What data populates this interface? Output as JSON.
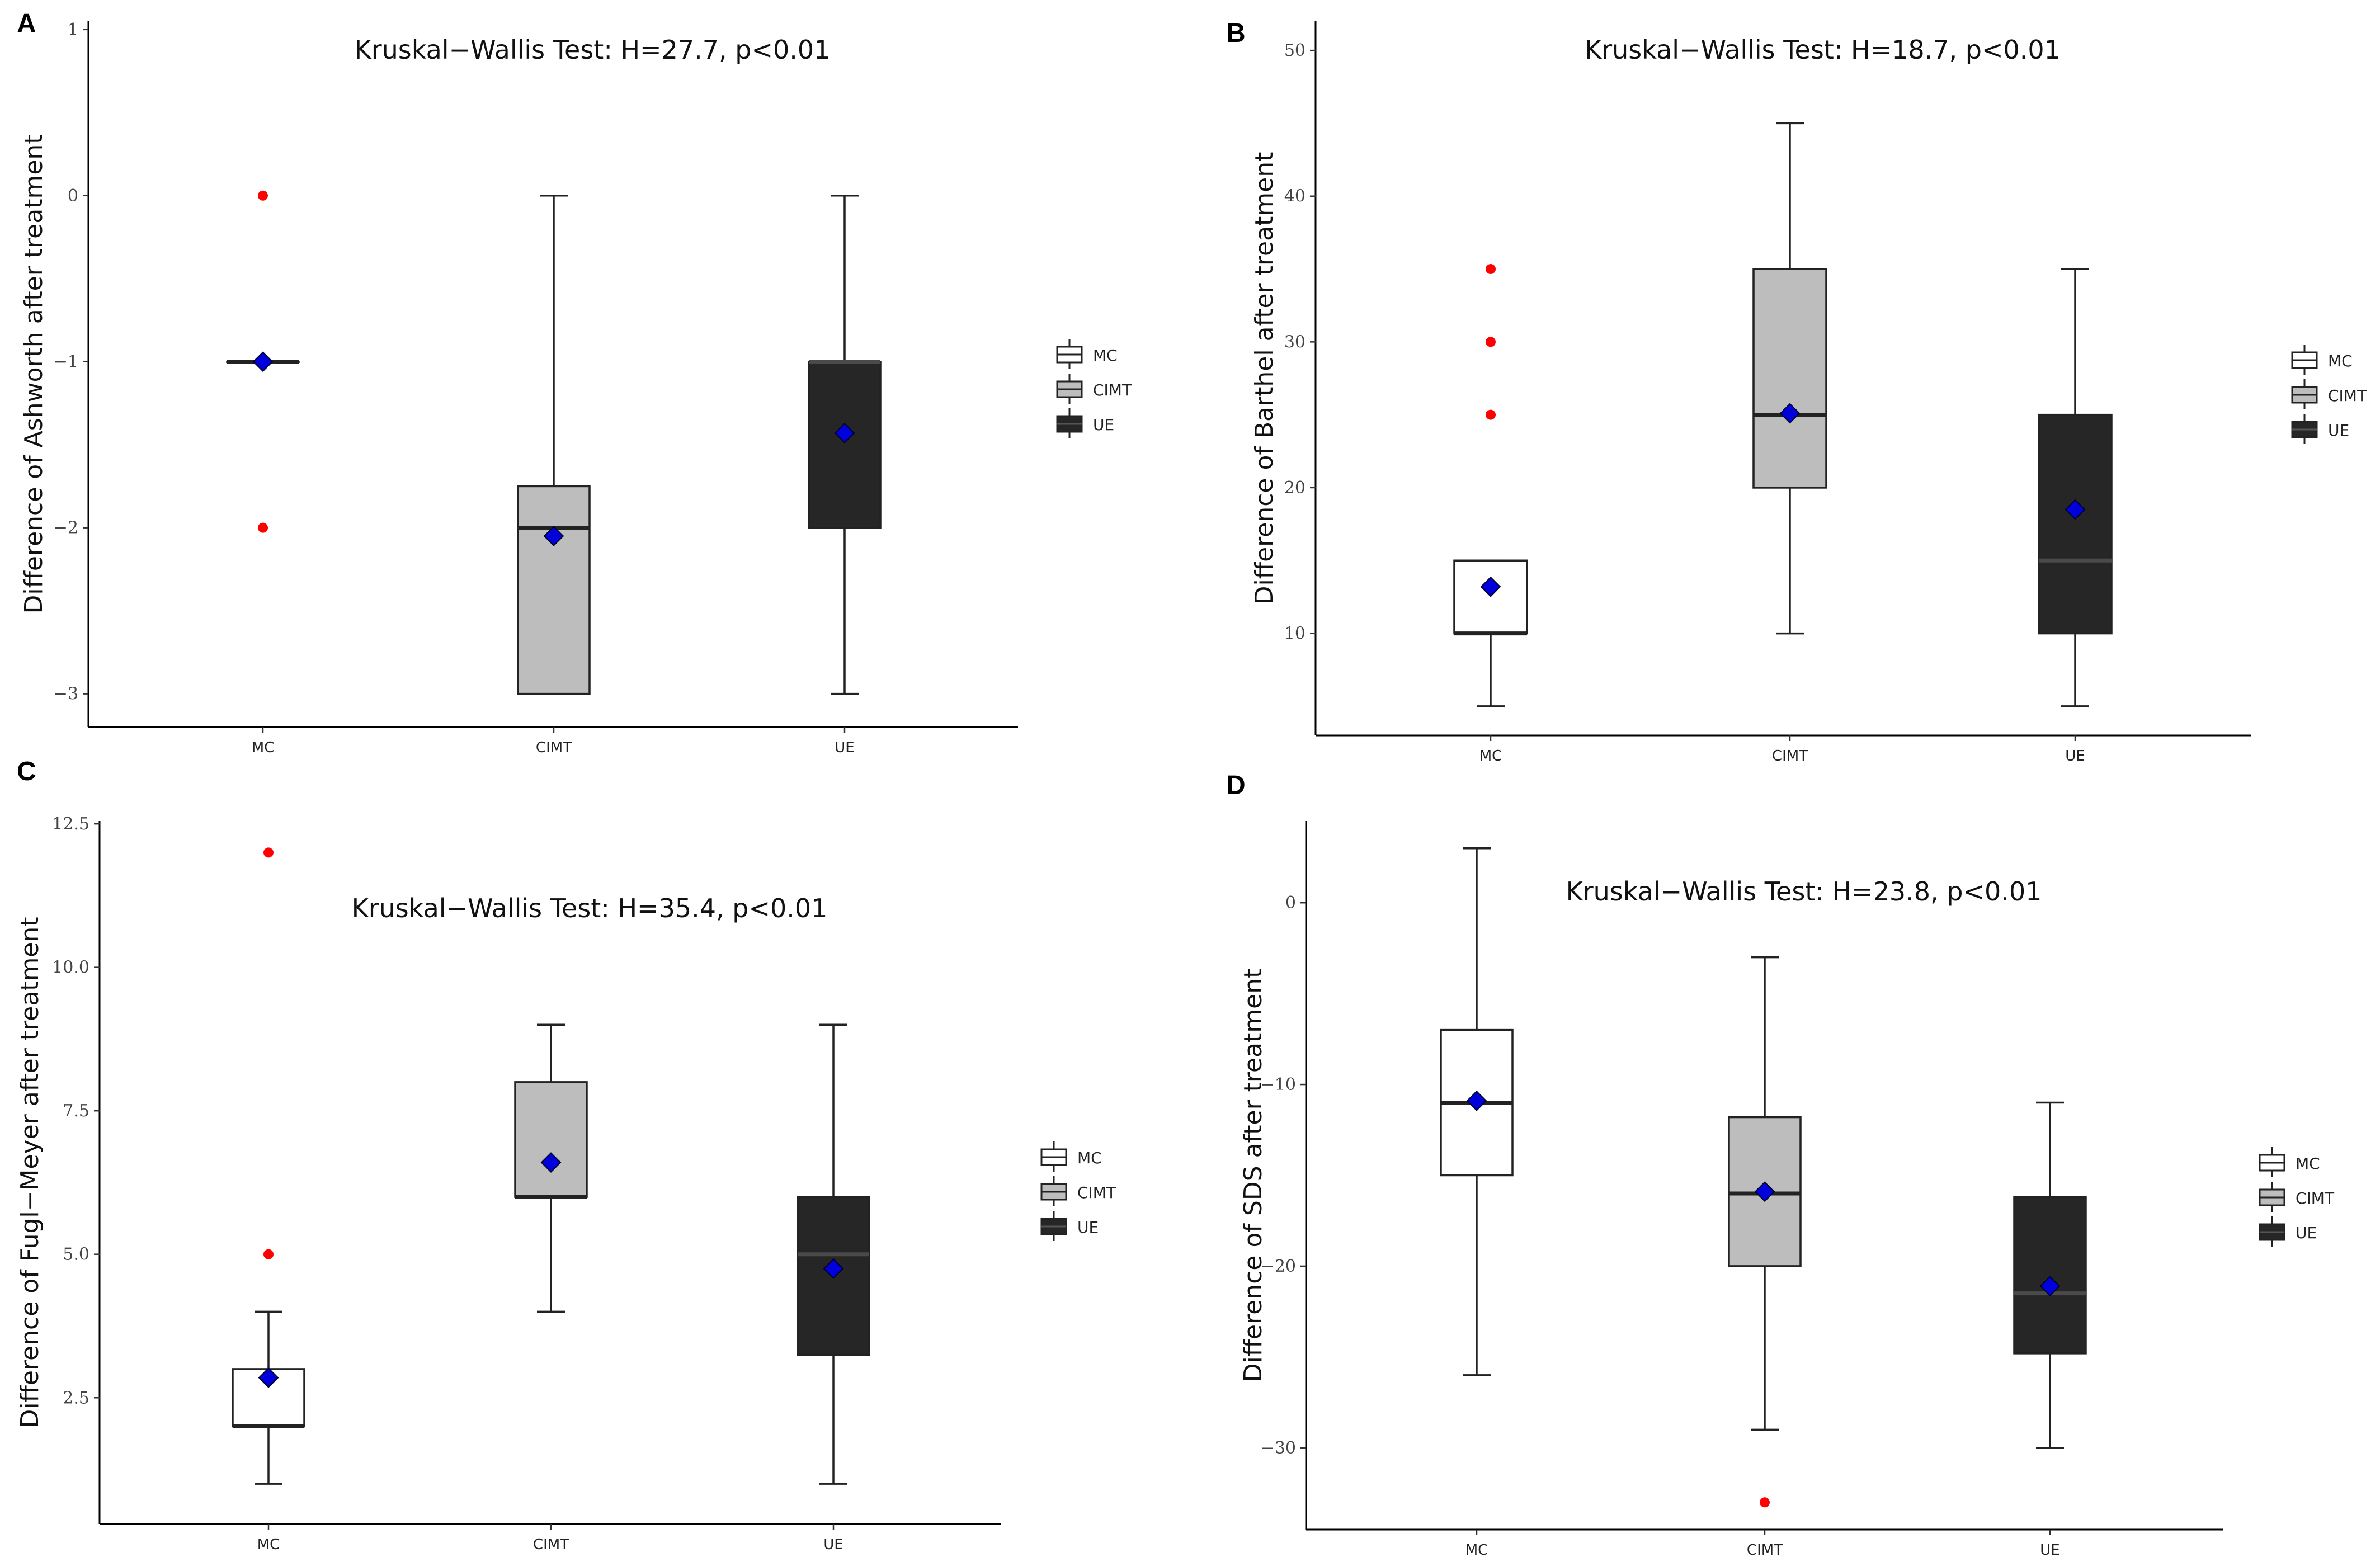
{
  "colors": {
    "MC": "#ffffff",
    "CIMT": "#bdbdbd",
    "UE": "#262626",
    "outlier": "#ff0000",
    "mean_marker": "#0000dd"
  },
  "legend": {
    "items": [
      "MC",
      "CIMT",
      "UE"
    ]
  },
  "chart_data": [
    {
      "panel": "A",
      "type": "box",
      "title": "Kruskal−Wallis Test: H=27.7, p<0.01",
      "ylabel": "Difference of Ashworth after treatment",
      "categories": [
        "MC",
        "CIMT",
        "UE"
      ],
      "ylim": [
        -3.2,
        1.05
      ],
      "yticks": [
        1,
        0,
        -1,
        -2,
        -3
      ],
      "ytick_labels": [
        "1",
        "0",
        "−1",
        "−2",
        "−3"
      ],
      "boxes": [
        {
          "group": "MC",
          "whisker_low": -1,
          "q1": -1,
          "median": -1,
          "q3": -1,
          "whisker_high": -1,
          "mean": -1,
          "outliers": [
            0,
            -2
          ]
        },
        {
          "group": "CIMT",
          "whisker_low": -3,
          "q1": -3,
          "median": -2,
          "q3": -1.75,
          "whisker_high": 0,
          "mean": -2.05,
          "outliers": []
        },
        {
          "group": "UE",
          "whisker_low": -3,
          "q1": -2,
          "median": -1,
          "q3": -1,
          "whisker_high": 0,
          "mean": -1.43,
          "outliers": []
        }
      ]
    },
    {
      "panel": "B",
      "type": "box",
      "title": "Kruskal−Wallis Test: H=18.7, p<0.01",
      "ylabel": "Difference of Barthel after treatment",
      "categories": [
        "MC",
        "CIMT",
        "UE"
      ],
      "ylim": [
        3,
        52
      ],
      "yticks": [
        50,
        40,
        30,
        20,
        10
      ],
      "ytick_labels": [
        "50",
        "40",
        "30",
        "20",
        "10"
      ],
      "boxes": [
        {
          "group": "MC",
          "whisker_low": 5,
          "q1": 10,
          "median": 10,
          "q3": 15,
          "whisker_high": 15,
          "mean": 13.2,
          "outliers": [
            25,
            30,
            35
          ]
        },
        {
          "group": "CIMT",
          "whisker_low": 10,
          "q1": 20,
          "median": 25,
          "q3": 35,
          "whisker_high": 45,
          "mean": 25.1,
          "outliers": []
        },
        {
          "group": "UE",
          "whisker_low": 5,
          "q1": 10,
          "median": 15,
          "q3": 25,
          "whisker_high": 35,
          "mean": 18.5,
          "outliers": []
        }
      ]
    },
    {
      "panel": "C",
      "type": "box",
      "title": "Kruskal−Wallis Test: H=35.4, p<0.01",
      "ylabel": "Difference of Fugl−Meyer after treatment",
      "categories": [
        "MC",
        "CIMT",
        "UE"
      ],
      "ylim": [
        0.3,
        12.55
      ],
      "yticks": [
        12.5,
        10,
        7.5,
        5,
        2.5
      ],
      "ytick_labels": [
        "12.5",
        "10.0",
        "7.5",
        "5.0",
        "2.5"
      ],
      "boxes": [
        {
          "group": "MC",
          "whisker_low": 1,
          "q1": 2,
          "median": 2,
          "q3": 3,
          "whisker_high": 4,
          "mean": 2.85,
          "outliers": [
            5,
            12
          ]
        },
        {
          "group": "CIMT",
          "whisker_low": 4,
          "q1": 6,
          "median": 6,
          "q3": 8,
          "whisker_high": 9,
          "mean": 6.6,
          "outliers": []
        },
        {
          "group": "UE",
          "whisker_low": 1,
          "q1": 3.25,
          "median": 5,
          "q3": 6,
          "whisker_high": 9,
          "mean": 4.75,
          "outliers": []
        }
      ]
    },
    {
      "panel": "D",
      "type": "box",
      "title": "Kruskal−Wallis Test: H=23.8, p<0.01",
      "ylabel": "Difference of SDS after treatment",
      "categories": [
        "MC",
        "CIMT",
        "UE"
      ],
      "ylim": [
        -34.5,
        4.5
      ],
      "yticks": [
        0,
        -10,
        -20,
        -30
      ],
      "ytick_labels": [
        "0",
        "−10",
        "−20",
        "−30"
      ],
      "boxes": [
        {
          "group": "MC",
          "whisker_low": -26,
          "q1": -15,
          "median": -11,
          "q3": -7,
          "whisker_high": 3,
          "mean": -10.9,
          "outliers": []
        },
        {
          "group": "CIMT",
          "whisker_low": -29,
          "q1": -20,
          "median": -16,
          "q3": -11.8,
          "whisker_high": -3,
          "mean": -15.9,
          "outliers": [
            -33
          ]
        },
        {
          "group": "UE",
          "whisker_low": -30,
          "q1": -24.8,
          "median": -21.5,
          "q3": -16.2,
          "whisker_high": -11,
          "mean": -21.1,
          "outliers": []
        }
      ]
    }
  ]
}
